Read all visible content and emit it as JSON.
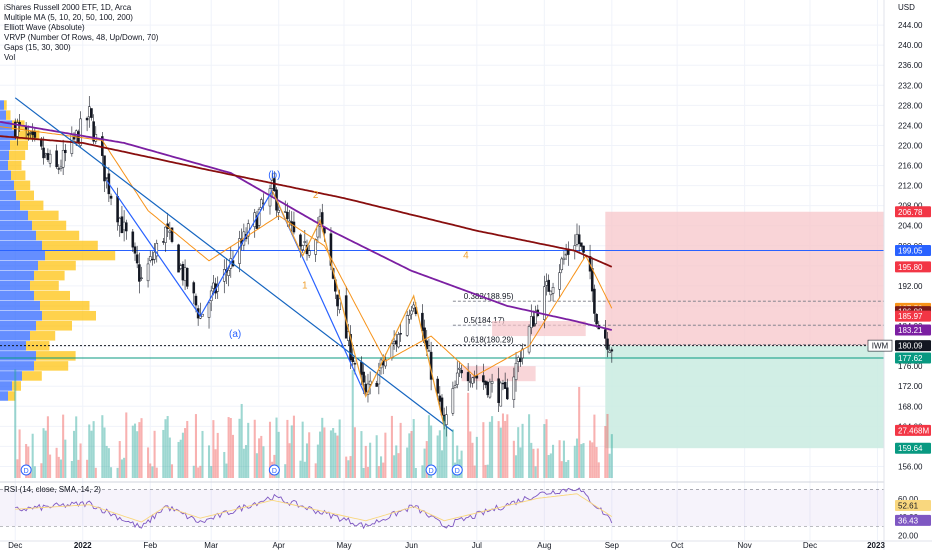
{
  "legend": {
    "title": "iShares Russell 2000 ETF, 1D, Arca",
    "indicators": [
      "Multiple MA (5, 10, 20, 50, 100, 200)",
      "Elliott Wave (Absolute)",
      "VRVP (Number Of Rows, 48, Up/Down, 70)",
      "Gaps (15, 30, 300)",
      "Vol"
    ]
  },
  "colors": {
    "up": "#089981",
    "down": "#f23645",
    "ma200": "#880e0e",
    "ma100": "#7b1fa2",
    "ma20": "#f7931a",
    "trend": "#1565c0",
    "wave_orange": "#f0a030",
    "wave_blue": "#2962ff",
    "vol_up": "#26a69a",
    "vol_down": "#ef5350",
    "rsi": "#7e57c2",
    "rsi_sma": "#f9d77e",
    "stop_zone": "#f7c5c9",
    "target_zone": "#c9ebe1",
    "vp_up": "#2962ff",
    "vp_down": "#ffc107"
  },
  "chart_data": {
    "type": "candlestick",
    "currency": "USD",
    "y_axis_ticks": [
      244,
      240,
      236,
      232,
      228,
      224,
      220,
      216,
      212,
      208,
      204,
      200,
      196,
      192,
      188,
      184,
      180,
      176,
      172,
      168,
      164,
      160,
      156
    ],
    "ylim": [
      153.5,
      249
    ],
    "x_axis_labels": [
      "Dec",
      "2022",
      "Feb",
      "Mar",
      "Apr",
      "May",
      "Jun",
      "Jul",
      "Aug",
      "Sep",
      "Oct",
      "Nov",
      "Dec",
      "2023"
    ],
    "price_tags": [
      {
        "value": "206.78",
        "price": 206.78,
        "bg": "#f23645"
      },
      {
        "value": "199.05",
        "price": 199.05,
        "bg": "#2962ff"
      },
      {
        "value": "195.80",
        "price": 195.8,
        "bg": "#f23645"
      },
      {
        "value": "187.53",
        "price": 187.53,
        "bg": "#f7931a"
      },
      {
        "value": "186.88",
        "price": 186.88,
        "bg": "#7a1a1a"
      },
      {
        "value": "185.97",
        "price": 185.97,
        "bg": "#f23645"
      },
      {
        "value": "183.21",
        "price": 183.21,
        "bg": "#7b1fa2"
      },
      {
        "value": "180.09",
        "price": 180.09,
        "bg": "#131722",
        "symbol": "IWM"
      },
      {
        "value": "177.62",
        "price": 177.62,
        "bg": "#089981"
      },
      {
        "value": "27.468M",
        "price": 163.2,
        "bg": "#f23645"
      },
      {
        "value": "159.64",
        "price": 159.64,
        "bg": "#089981"
      }
    ],
    "fib_levels": [
      {
        "label": "0.382(188.95)",
        "price": 188.95
      },
      {
        "label": "0.5(184.17)",
        "price": 184.17
      },
      {
        "label": "0.618(180.29)",
        "price": 180.29
      }
    ],
    "wave_labels": [
      {
        "text": "(b)",
        "color": "#2962ff",
        "date": "2022-03-30",
        "price": 213.5
      },
      {
        "text": "(a)",
        "color": "#2962ff",
        "date": "2022-03-12",
        "price": 181.8
      },
      {
        "text": "2",
        "color": "#f0a030",
        "date": "2022-04-18",
        "price": 209.5
      },
      {
        "text": "1",
        "color": "#f0a030",
        "date": "2022-04-13",
        "price": 191.5
      },
      {
        "text": "4",
        "color": "#f0a030",
        "date": "2022-06-26",
        "price": 197.5
      }
    ],
    "position": {
      "start_date": "2022-08-29",
      "end_date": "2022-12-31",
      "entry": 180.09,
      "stop": 206.78,
      "target": 159.64
    },
    "trendline": {
      "start": {
        "date": "2021-12-01",
        "price": 229.5
      },
      "end": {
        "date": "2022-06-20",
        "price": 163
      }
    },
    "horizontal_lines": [
      {
        "price": 199.05,
        "color": "#2962ff",
        "dashed": false
      },
      {
        "price": 177.62,
        "color": "#089981",
        "dashed": false
      },
      {
        "price": 180.09,
        "color": "#131722",
        "dashed": true
      }
    ],
    "ohlc_pivots": [
      {
        "date": "2021-12-01",
        "price": 224
      },
      {
        "date": "2021-12-20",
        "price": 215
      },
      {
        "date": "2022-01-04",
        "price": 226
      },
      {
        "date": "2022-01-12",
        "price": 213
      },
      {
        "date": "2022-01-28",
        "price": 193
      },
      {
        "date": "2022-02-08",
        "price": 203
      },
      {
        "date": "2022-02-24",
        "price": 186
      },
      {
        "date": "2022-03-08",
        "price": 195
      },
      {
        "date": "2022-03-29",
        "price": 211
      },
      {
        "date": "2022-04-12",
        "price": 198
      },
      {
        "date": "2022-04-20",
        "price": 205
      },
      {
        "date": "2022-05-02",
        "price": 182
      },
      {
        "date": "2022-05-11",
        "price": 170
      },
      {
        "date": "2022-05-26",
        "price": 182
      },
      {
        "date": "2022-06-02",
        "price": 190
      },
      {
        "date": "2022-06-16",
        "price": 164
      },
      {
        "date": "2022-06-24",
        "price": 176
      },
      {
        "date": "2022-07-14",
        "price": 170
      },
      {
        "date": "2022-07-29",
        "price": 188
      },
      {
        "date": "2022-08-16",
        "price": 202
      },
      {
        "date": "2022-08-22",
        "price": 193
      },
      {
        "date": "2022-08-26",
        "price": 184
      },
      {
        "date": "2022-09-01",
        "price": 180
      }
    ],
    "ma200_pivots": [
      {
        "date": "2021-11-20",
        "price": 222
      },
      {
        "date": "2022-01-01",
        "price": 220.5
      },
      {
        "date": "2022-03-01",
        "price": 215
      },
      {
        "date": "2022-05-01",
        "price": 209.5
      },
      {
        "date": "2022-07-01",
        "price": 203
      },
      {
        "date": "2022-08-15",
        "price": 199
      },
      {
        "date": "2022-09-01",
        "price": 195.8
      }
    ],
    "ma100_pivots": [
      {
        "date": "2021-11-20",
        "price": 225
      },
      {
        "date": "2022-01-20",
        "price": 220.5
      },
      {
        "date": "2022-03-10",
        "price": 214.5
      },
      {
        "date": "2022-04-25",
        "price": 203
      },
      {
        "date": "2022-06-01",
        "price": 195
      },
      {
        "date": "2022-07-15",
        "price": 188
      },
      {
        "date": "2022-08-15",
        "price": 185
      },
      {
        "date": "2022-09-01",
        "price": 183.21
      }
    ],
    "ma20_pivots": [
      {
        "date": "2021-11-20",
        "price": 224
      },
      {
        "date": "2022-01-10",
        "price": 221
      },
      {
        "date": "2022-01-31",
        "price": 207
      },
      {
        "date": "2022-02-28",
        "price": 197
      },
      {
        "date": "2022-04-01",
        "price": 206
      },
      {
        "date": "2022-04-22",
        "price": 200
      },
      {
        "date": "2022-05-20",
        "price": 177
      },
      {
        "date": "2022-06-10",
        "price": 182
      },
      {
        "date": "2022-06-30",
        "price": 174
      },
      {
        "date": "2022-07-25",
        "price": 180
      },
      {
        "date": "2022-08-20",
        "price": 198
      },
      {
        "date": "2022-09-01",
        "price": 187.53
      }
    ],
    "volume": {
      "axis_label": "27.468M"
    },
    "rsi": {
      "legend": "RSI (14, close, SMA, 14, 2)",
      "ticks": [
        60,
        40,
        20
      ],
      "ylim": [
        15,
        75
      ],
      "band": [
        30,
        70
      ],
      "rsi_value": "36.43",
      "sma_value": "52.61",
      "pivots": [
        {
          "date": "2021-12-01",
          "value": 48
        },
        {
          "date": "2022-01-04",
          "value": 55
        },
        {
          "date": "2022-01-28",
          "value": 28
        },
        {
          "date": "2022-02-08",
          "value": 52
        },
        {
          "date": "2022-02-24",
          "value": 34
        },
        {
          "date": "2022-03-29",
          "value": 62
        },
        {
          "date": "2022-05-11",
          "value": 30
        },
        {
          "date": "2022-06-02",
          "value": 52
        },
        {
          "date": "2022-06-16",
          "value": 30
        },
        {
          "date": "2022-07-29",
          "value": 65
        },
        {
          "date": "2022-08-16",
          "value": 72
        },
        {
          "date": "2022-09-01",
          "value": 36.43
        }
      ]
    },
    "volume_profile_rows": [
      {
        "price": 228,
        "up": 4,
        "down": 3
      },
      {
        "price": 226,
        "up": 6,
        "down": 5
      },
      {
        "price": 224,
        "up": 12,
        "down": 14
      },
      {
        "price": 222,
        "up": 16,
        "down": 26
      },
      {
        "price": 220,
        "up": 10,
        "down": 20
      },
      {
        "price": 218,
        "up": 9,
        "down": 18
      },
      {
        "price": 216,
        "up": 8,
        "down": 15
      },
      {
        "price": 214,
        "up": 11,
        "down": 16
      },
      {
        "price": 212,
        "up": 14,
        "down": 18
      },
      {
        "price": 210,
        "up": 16,
        "down": 20
      },
      {
        "price": 208,
        "up": 20,
        "down": 26
      },
      {
        "price": 206,
        "up": 28,
        "down": 34
      },
      {
        "price": 204,
        "up": 32,
        "down": 38
      },
      {
        "price": 202,
        "up": 36,
        "down": 48
      },
      {
        "price": 200,
        "up": 42,
        "down": 62
      },
      {
        "price": 198,
        "up": 45,
        "down": 78
      },
      {
        "price": 196,
        "up": 38,
        "down": 42
      },
      {
        "price": 194,
        "up": 34,
        "down": 34
      },
      {
        "price": 192,
        "up": 30,
        "down": 32
      },
      {
        "price": 190,
        "up": 34,
        "down": 40
      },
      {
        "price": 188,
        "up": 40,
        "down": 55
      },
      {
        "price": 186,
        "up": 42,
        "down": 60
      },
      {
        "price": 184,
        "up": 36,
        "down": 40
      },
      {
        "price": 182,
        "up": 30,
        "down": 28
      },
      {
        "price": 180,
        "up": 26,
        "down": 26
      },
      {
        "price": 178,
        "up": 36,
        "down": 44
      },
      {
        "price": 176,
        "up": 34,
        "down": 38
      },
      {
        "price": 174,
        "up": 22,
        "down": 22
      },
      {
        "price": 172,
        "up": 12,
        "down": 10
      },
      {
        "price": 170,
        "up": 8,
        "down": 8
      }
    ]
  }
}
